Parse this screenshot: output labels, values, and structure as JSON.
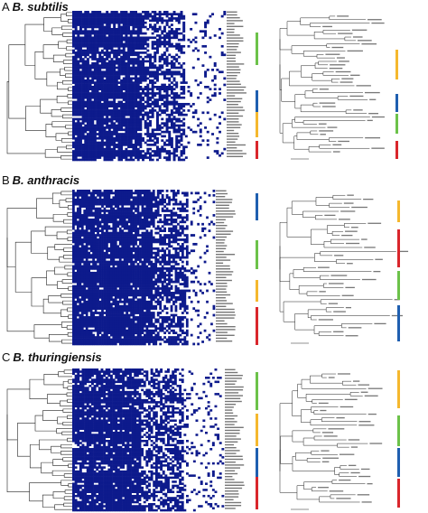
{
  "colors": {
    "heatmap": "#0d1a8c",
    "background": "#ffffff",
    "tree": "#222222",
    "bar_green": "#6cc24a",
    "bar_yellow": "#f5b82e",
    "bar_blue": "#1f5fb0",
    "bar_red": "#d9262c"
  },
  "panels": [
    {
      "letter": "A",
      "species": "B. subtilis",
      "left_bars": [
        "green",
        "blue",
        "yellow",
        "red"
      ],
      "right_bars": [
        "yellow",
        "blue",
        "green",
        "red"
      ]
    },
    {
      "letter": "B",
      "species": "B. anthracis",
      "left_bars": [
        "blue",
        "green",
        "yellow",
        "red"
      ],
      "right_bars": [
        "yellow",
        "red",
        "green",
        "blue"
      ]
    },
    {
      "letter": "C",
      "species": "B. thuringiensis",
      "left_bars": [
        "green",
        "yellow",
        "blue",
        "red"
      ],
      "right_bars": [
        "yellow",
        "green",
        "blue",
        "red"
      ]
    }
  ]
}
